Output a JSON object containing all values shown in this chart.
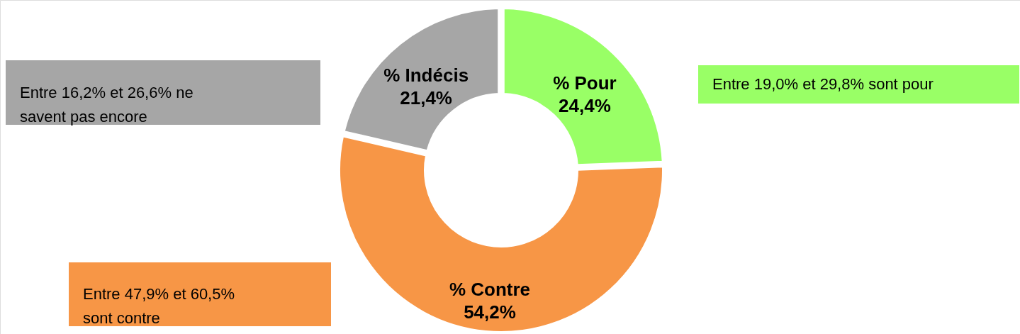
{
  "chart_data": {
    "type": "donut",
    "categories": [
      "% Pour",
      "% Contre",
      "% Indécis"
    ],
    "values": [
      24.4,
      54.2,
      21.4
    ],
    "value_labels": [
      "24,4%",
      "54,2%",
      "21,4%"
    ],
    "colors": [
      "#99ff66",
      "#f79646",
      "#a6a6a6"
    ],
    "annotations": [
      "Entre 19,0% et 29,8% sont pour",
      "Entre 47,9% et 60,5% sont contre",
      "Entre 16,2% et 26,6% ne savent pas encore"
    ]
  }
}
